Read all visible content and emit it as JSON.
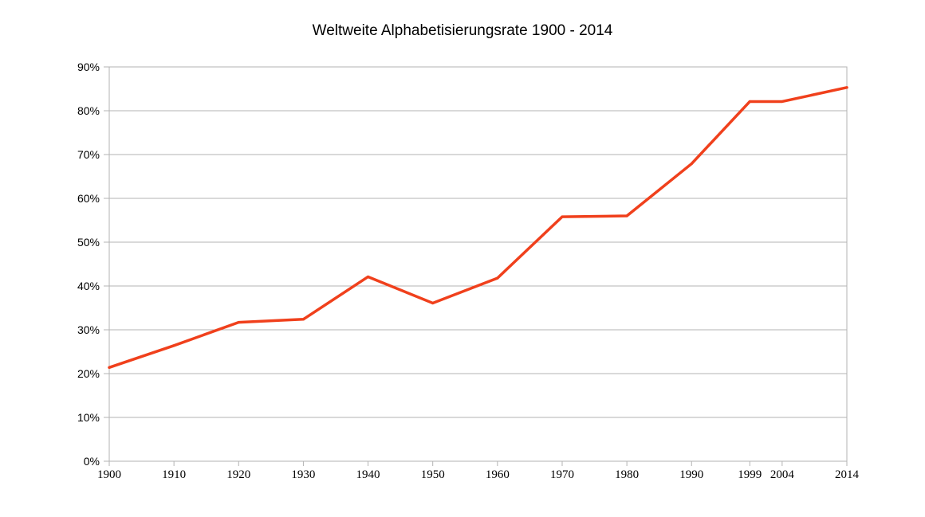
{
  "chart_data": {
    "type": "line",
    "title": "Weltweite Alphabetisierungsrate 1900 - 2014",
    "xlabel": "",
    "ylabel": "",
    "x_type": "linear-year",
    "xlim": [
      1900,
      2014
    ],
    "ylim": [
      0,
      90
    ],
    "y_unit": "%",
    "y_ticks": [
      "0%",
      "10%",
      "20%",
      "30%",
      "40%",
      "50%",
      "60%",
      "70%",
      "80%",
      "90%"
    ],
    "x_ticks": [
      "1900",
      "1910",
      "1920",
      "1930",
      "1940",
      "1950",
      "1960",
      "1970",
      "1980",
      "1990",
      "1999",
      "2004",
      "2014"
    ],
    "grid": "horizontal",
    "legend": "none",
    "series": [
      {
        "color": "#f0401c",
        "x": [
          1900,
          1910,
          1920,
          1930,
          1940,
          1950,
          1960,
          1970,
          1980,
          1990,
          1999,
          2004,
          2014
        ],
        "values": [
          21.4,
          26.4,
          31.7,
          32.4,
          42.1,
          36.1,
          41.8,
          55.8,
          56.0,
          67.9,
          82.1,
          82.1,
          85.3
        ]
      }
    ],
    "colors": {
      "line": "#f0401c",
      "grid": "#b3b3b3",
      "axis": "#b3b3b3"
    }
  }
}
